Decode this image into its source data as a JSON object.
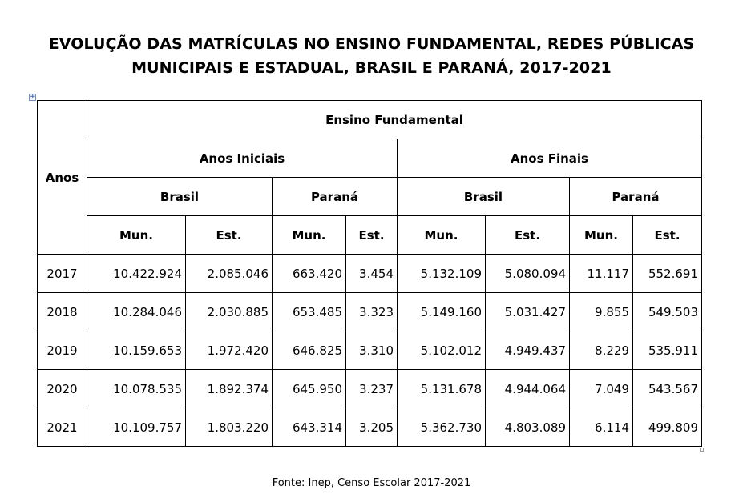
{
  "title": {
    "line1": "EVOLUÇÃO DAS MATRÍCULAS NO ENSINO FUNDAMENTAL, REDES PÚBLICAS",
    "line2": "MUNICIPAIS E ESTADUAL, BRASIL E PARANÁ, 2017-2021"
  },
  "table": {
    "header": {
      "anos": "Anos",
      "ensino": "Ensino Fundamental",
      "iniciais": "Anos Iniciais",
      "finais": "Anos Finais",
      "brasil": "Brasil",
      "parana": "Paraná",
      "mun": "Mun.",
      "est": "Est."
    },
    "rows": [
      {
        "year": "2017",
        "ai_br_mun": "10.422.924",
        "ai_br_est": "2.085.046",
        "ai_pr_mun": "663.420",
        "ai_pr_est": "3.454",
        "af_br_mun": "5.132.109",
        "af_br_est": "5.080.094",
        "af_pr_mun": "11.117",
        "af_pr_est": "552.691"
      },
      {
        "year": "2018",
        "ai_br_mun": "10.284.046",
        "ai_br_est": "2.030.885",
        "ai_pr_mun": "653.485",
        "ai_pr_est": "3.323",
        "af_br_mun": "5.149.160",
        "af_br_est": "5.031.427",
        "af_pr_mun": "9.855",
        "af_pr_est": "549.503"
      },
      {
        "year": "2019",
        "ai_br_mun": "10.159.653",
        "ai_br_est": "1.972.420",
        "ai_pr_mun": "646.825",
        "ai_pr_est": "3.310",
        "af_br_mun": "5.102.012",
        "af_br_est": "4.949.437",
        "af_pr_mun": "8.229",
        "af_pr_est": "535.911"
      },
      {
        "year": "2020",
        "ai_br_mun": "10.078.535",
        "ai_br_est": "1.892.374",
        "ai_pr_mun": "645.950",
        "ai_pr_est": "3.237",
        "af_br_mun": "5.131.678",
        "af_br_est": "4.944.064",
        "af_pr_mun": "7.049",
        "af_pr_est": "543.567"
      },
      {
        "year": "2021",
        "ai_br_mun": "10.109.757",
        "ai_br_est": "1.803.220",
        "ai_pr_mun": "643.314",
        "ai_pr_est": "3.205",
        "af_br_mun": "5.362.730",
        "af_br_est": "4.803.089",
        "af_pr_mun": "6.114",
        "af_pr_est": "499.809"
      }
    ]
  },
  "source": "Fonte: Inep, Censo Escolar 2017-2021",
  "icons": {
    "table_anchor": "move-handle-icon",
    "table_resize": "resize-handle-icon"
  }
}
